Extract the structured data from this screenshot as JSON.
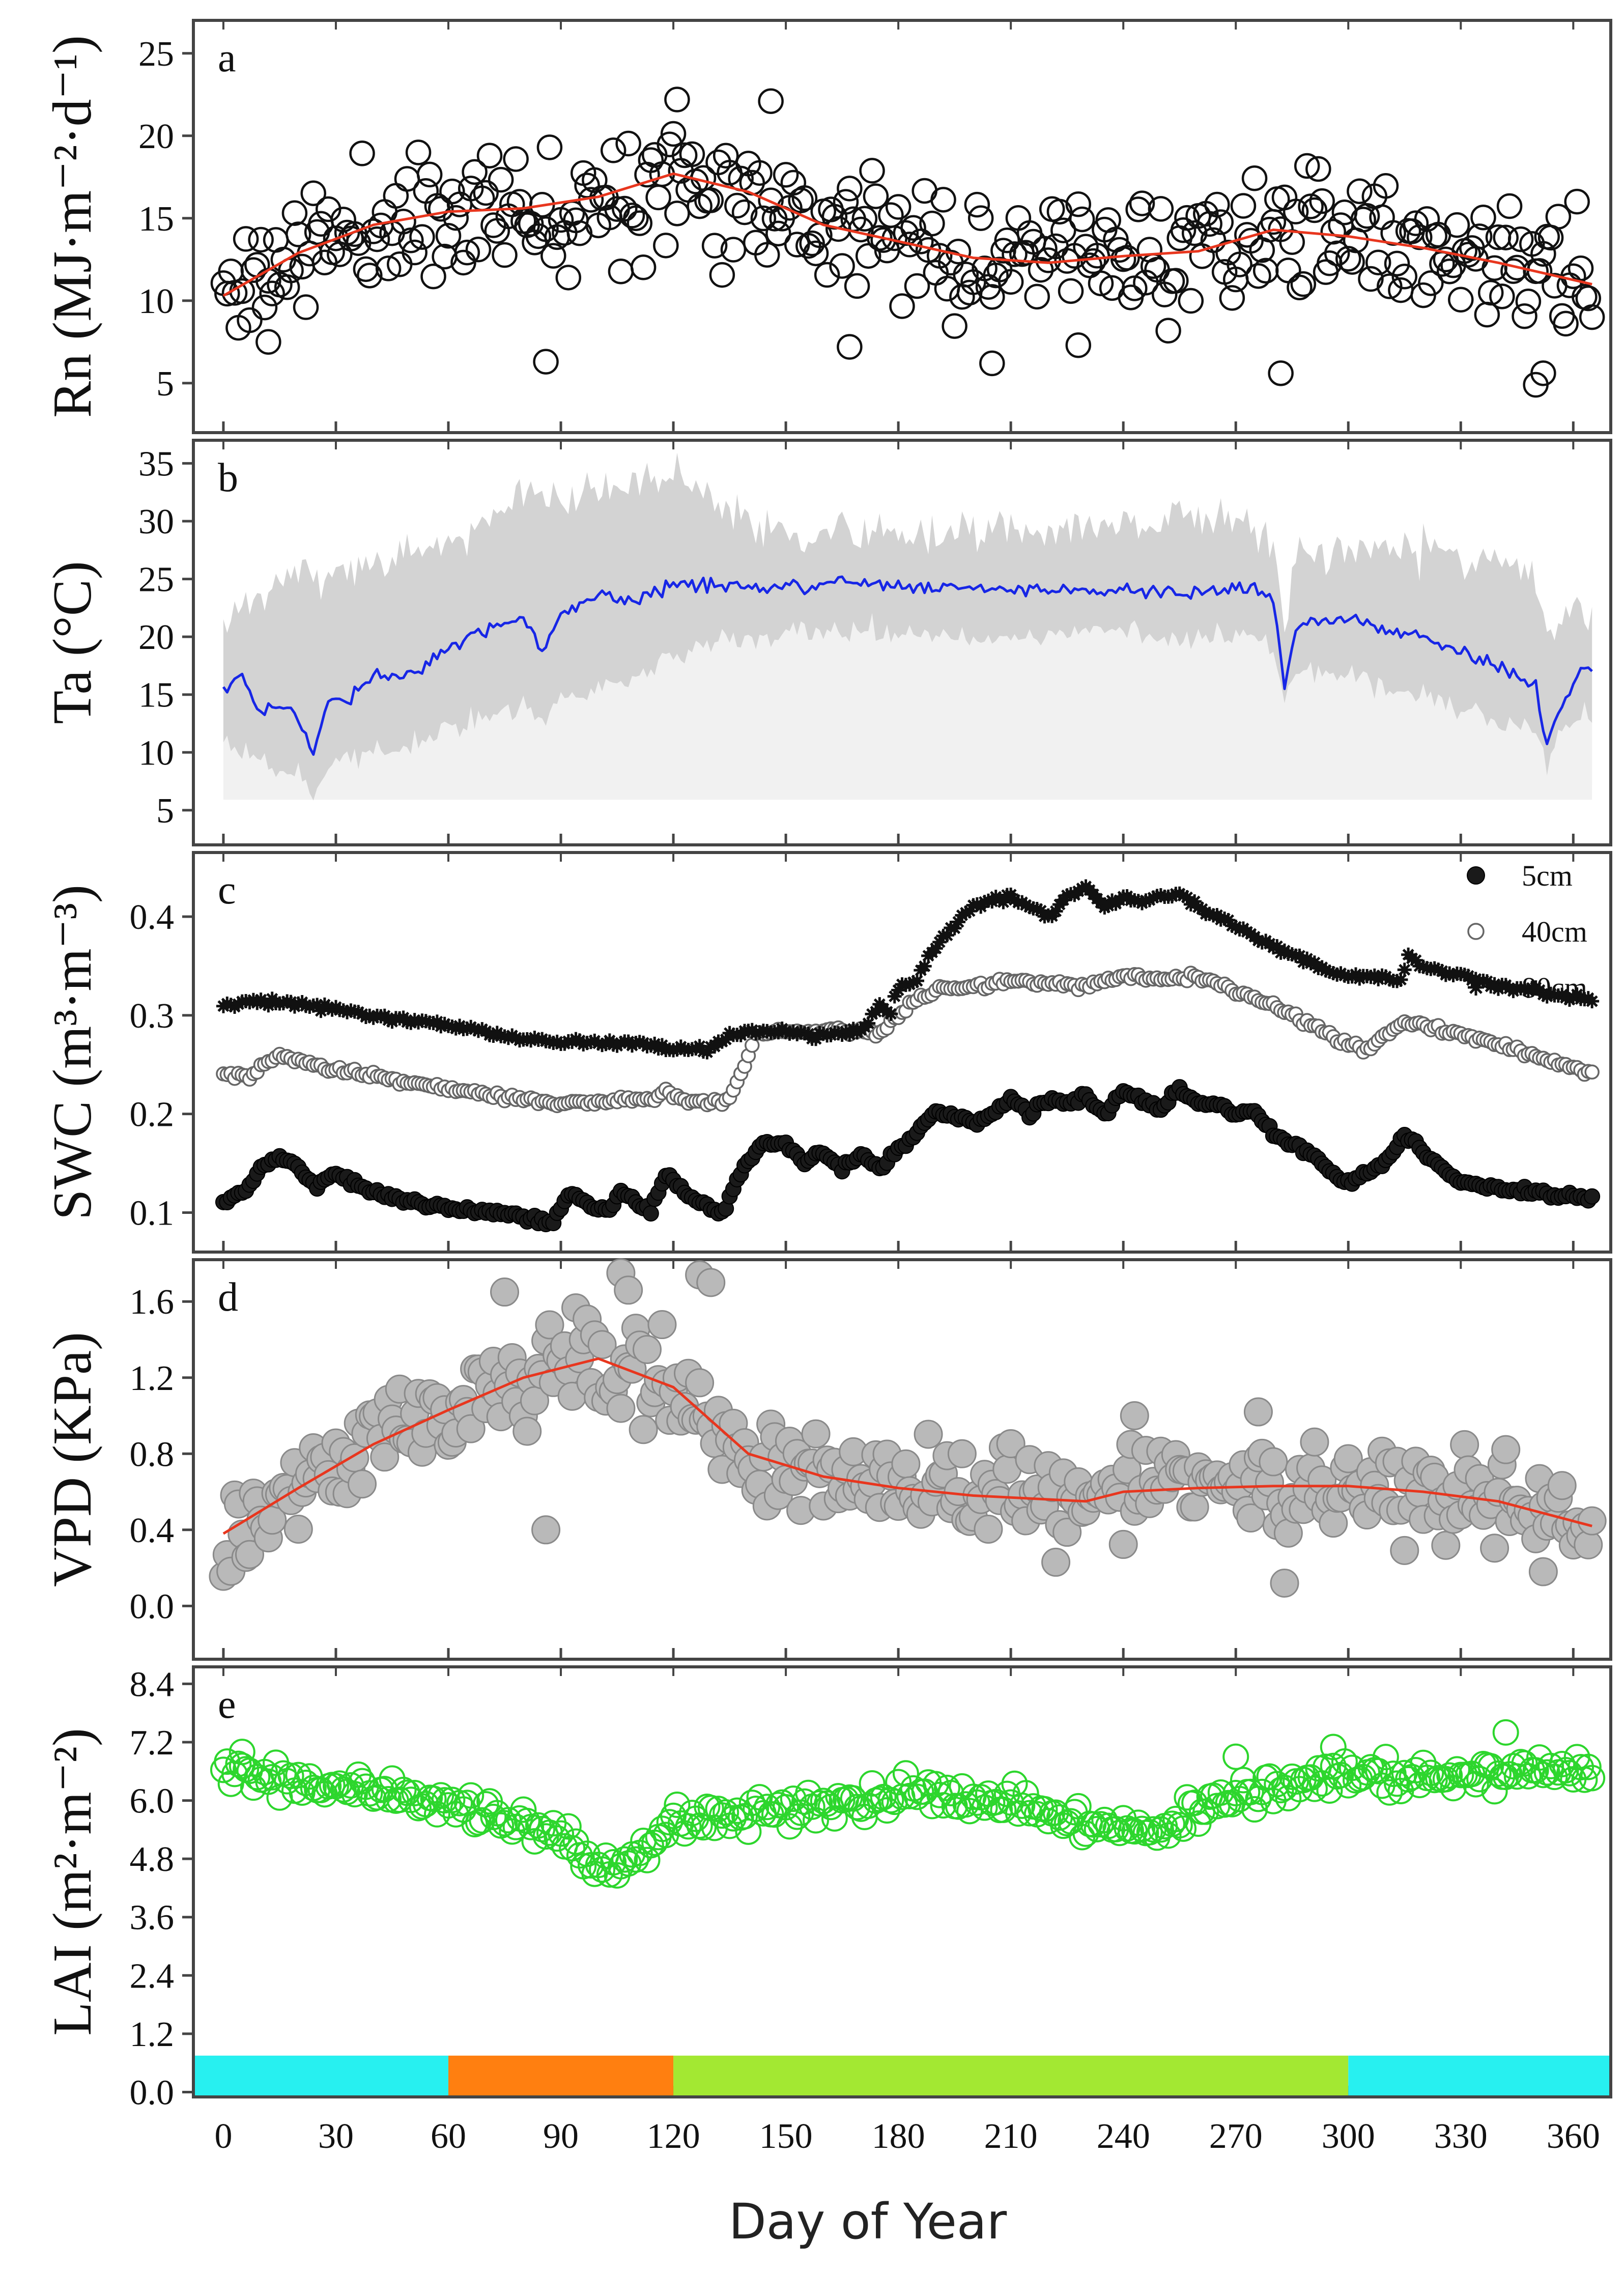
{
  "figure": {
    "x_title": "Day of Year",
    "x_ticks": [
      0,
      30,
      60,
      90,
      120,
      150,
      180,
      210,
      240,
      270,
      300,
      330,
      360
    ],
    "x_range": [
      -8,
      370
    ]
  },
  "colors": {
    "rn_marker": "#111111",
    "rn_trend": "#e8361e",
    "ta_band": "#d3d3d3",
    "ta_line": "#1726e6",
    "swc_series": "#1a1a1a",
    "vpd_marker": "#b9b9b9",
    "vpd_trend": "#e8361e",
    "lai_marker": "#2dd62d",
    "season_cyan": "#27f0f0",
    "season_orange": "#ff7f10",
    "season_green": "#a3e832"
  },
  "chart_data": [
    {
      "id": "a",
      "panel_label": "a",
      "type": "scatter",
      "ylabel": "Rn (MJ·m⁻²·d⁻¹)",
      "ylim": [
        2,
        27
      ],
      "y_ticks": [
        5,
        10,
        15,
        20,
        25
      ],
      "marker": "open-circle",
      "scatter_seed": 11,
      "scatter_noise": 2.6,
      "outliers": [
        [
          86,
          6.3
        ],
        [
          12,
          7.5
        ],
        [
          282,
          5.6
        ],
        [
          350,
          4.9
        ],
        [
          352,
          5.6
        ],
        [
          146,
          22.1
        ],
        [
          121,
          22.2
        ],
        [
          167,
          7.2
        ],
        [
          205,
          6.2
        ],
        [
          228,
          7.3
        ]
      ],
      "trend": {
        "x": [
          0,
          20,
          40,
          60,
          80,
          100,
          120,
          140,
          160,
          180,
          200,
          220,
          240,
          260,
          280,
          300,
          320,
          340,
          365
        ],
        "y": [
          10.3,
          12.9,
          14.6,
          15.4,
          15.6,
          16.3,
          17.7,
          16.6,
          14.6,
          13.6,
          12.6,
          12.3,
          12.7,
          13.0,
          14.3,
          13.9,
          13.2,
          12.3,
          11.0
        ]
      }
    },
    {
      "id": "b",
      "panel_label": "b",
      "type": "line",
      "ylabel": "Ta (°C)",
      "ylim": [
        2,
        37
      ],
      "y_ticks": [
        5,
        10,
        15,
        20,
        25,
        30,
        35
      ],
      "band_base": 5.9,
      "line": {
        "x": [
          0,
          5,
          10,
          15,
          20,
          24,
          28,
          34,
          40,
          50,
          60,
          70,
          80,
          85,
          90,
          100,
          110,
          120,
          130,
          140,
          160,
          180,
          200,
          220,
          240,
          260,
          275,
          280,
          283,
          286,
          290,
          300,
          320,
          340,
          350,
          353,
          357,
          362,
          365
        ],
        "y": [
          15.3,
          16.8,
          13.5,
          14.2,
          13.0,
          9.8,
          14.5,
          15.0,
          16.5,
          16.8,
          19.0,
          20.8,
          21.8,
          18.5,
          22.0,
          23.6,
          23.0,
          24.6,
          24.6,
          24.2,
          24.6,
          24.4,
          24.0,
          24.1,
          24.1,
          23.7,
          24.2,
          23.3,
          16.0,
          21.0,
          21.2,
          21.5,
          20.0,
          17.5,
          16.0,
          10.8,
          14.0,
          17.5,
          17.1
        ]
      },
      "upper": {
        "x": [
          0,
          10,
          20,
          30,
          40,
          50,
          60,
          70,
          80,
          85,
          90,
          100,
          110,
          120,
          130,
          140,
          150,
          160,
          180,
          200,
          220,
          240,
          260,
          275,
          280,
          283,
          286,
          290,
          300,
          320,
          340,
          350,
          355,
          360,
          365
        ],
        "y": [
          21.0,
          24.0,
          26.5,
          25.0,
          26.0,
          28.0,
          28.0,
          31.0,
          33.0,
          32.5,
          31.0,
          32.5,
          33.0,
          34.0,
          32.0,
          30.5,
          29.0,
          28.5,
          29.0,
          29.0,
          29.5,
          29.5,
          30.0,
          30.5,
          29.0,
          21.0,
          27.0,
          28.0,
          27.5,
          27.5,
          27.0,
          25.0,
          20.0,
          22.0,
          23.0
        ]
      },
      "lower": {
        "x": [
          0,
          10,
          20,
          24,
          28,
          40,
          50,
          60,
          70,
          80,
          85,
          90,
          100,
          110,
          120,
          130,
          140,
          160,
          180,
          200,
          220,
          240,
          260,
          275,
          280,
          283,
          286,
          290,
          300,
          320,
          340,
          350,
          353,
          357,
          365
        ],
        "y": [
          11.0,
          9.0,
          8.0,
          6.0,
          9.0,
          10.0,
          10.5,
          12.0,
          13.0,
          14.0,
          12.5,
          14.5,
          15.5,
          16.5,
          18.5,
          19.5,
          20.0,
          20.5,
          20.5,
          20.0,
          20.0,
          20.5,
          20.0,
          20.0,
          19.0,
          14.5,
          16.5,
          17.0,
          16.5,
          15.0,
          13.0,
          11.5,
          8.5,
          11.5,
          13.5
        ]
      }
    },
    {
      "id": "c",
      "panel_label": "c",
      "type": "scatter",
      "ylabel": "SWC (m³·m⁻³)",
      "ylim": [
        0.06,
        0.465
      ],
      "y_ticks": [
        0.1,
        0.2,
        0.3,
        0.4
      ],
      "y_tick_labels": [
        "0.1",
        "0.2",
        "0.3",
        "0.4"
      ],
      "legend": [
        {
          "label": "5cm",
          "marker": "filled-circle"
        },
        {
          "label": "40cm",
          "marker": "open-circle"
        },
        {
          "label": "80cm",
          "marker": "asterisk"
        }
      ],
      "series": [
        {
          "name": "5cm",
          "marker": "filled-circle",
          "x": [
            0,
            5,
            10,
            15,
            20,
            25,
            30,
            40,
            50,
            60,
            70,
            80,
            88,
            92,
            97,
            103,
            106,
            110,
            114,
            118,
            122,
            127,
            133,
            138,
            143,
            150,
            155,
            160,
            165,
            170,
            175,
            180,
            185,
            190,
            200,
            205,
            210,
            215,
            220,
            225,
            230,
            235,
            240,
            245,
            250,
            255,
            260,
            265,
            270,
            275,
            280,
            290,
            296,
            300,
            305,
            310,
            315,
            320,
            330,
            340,
            350,
            365
          ],
          "y": [
            0.11,
            0.12,
            0.145,
            0.158,
            0.145,
            0.125,
            0.14,
            0.12,
            0.11,
            0.105,
            0.1,
            0.095,
            0.09,
            0.12,
            0.11,
            0.1,
            0.122,
            0.11,
            0.1,
            0.14,
            0.125,
            0.11,
            0.1,
            0.14,
            0.17,
            0.17,
            0.15,
            0.16,
            0.145,
            0.16,
            0.145,
            0.165,
            0.18,
            0.205,
            0.19,
            0.2,
            0.218,
            0.2,
            0.215,
            0.21,
            0.22,
            0.2,
            0.225,
            0.215,
            0.205,
            0.225,
            0.21,
            0.21,
            0.2,
            0.205,
            0.18,
            0.16,
            0.14,
            0.13,
            0.14,
            0.15,
            0.18,
            0.16,
            0.13,
            0.125,
            0.12,
            0.115
          ]
        },
        {
          "name": "40cm",
          "marker": "open-circle",
          "x": [
            0,
            5,
            8,
            10,
            15,
            30,
            60,
            80,
            90,
            110,
            115,
            118,
            122,
            130,
            135,
            138,
            142,
            150,
            160,
            170,
            175,
            180,
            185,
            190,
            200,
            210,
            230,
            240,
            250,
            260,
            270,
            280,
            290,
            300,
            305,
            310,
            315,
            320,
            340,
            365
          ],
          "y": [
            0.24,
            0.24,
            0.238,
            0.25,
            0.258,
            0.245,
            0.225,
            0.215,
            0.21,
            0.215,
            0.213,
            0.225,
            0.215,
            0.213,
            0.213,
            0.24,
            0.28,
            0.283,
            0.285,
            0.285,
            0.28,
            0.3,
            0.315,
            0.325,
            0.33,
            0.335,
            0.33,
            0.34,
            0.335,
            0.34,
            0.325,
            0.31,
            0.29,
            0.27,
            0.265,
            0.28,
            0.295,
            0.29,
            0.27,
            0.24
          ]
        },
        {
          "name": "80cm",
          "marker": "asterisk",
          "x": [
            0,
            10,
            20,
            40,
            60,
            80,
            100,
            120,
            130,
            135,
            140,
            150,
            160,
            170,
            175,
            178,
            180,
            185,
            190,
            195,
            200,
            210,
            220,
            225,
            230,
            235,
            240,
            245,
            250,
            255,
            260,
            280,
            295,
            300,
            310,
            314,
            316,
            320,
            340,
            365
          ],
          "y": [
            0.312,
            0.313,
            0.312,
            0.3,
            0.29,
            0.275,
            0.272,
            0.268,
            0.265,
            0.28,
            0.285,
            0.282,
            0.28,
            0.285,
            0.31,
            0.3,
            0.33,
            0.335,
            0.37,
            0.39,
            0.41,
            0.42,
            0.4,
            0.42,
            0.43,
            0.41,
            0.42,
            0.415,
            0.42,
            0.425,
            0.41,
            0.37,
            0.345,
            0.34,
            0.34,
            0.335,
            0.36,
            0.35,
            0.33,
            0.315
          ]
        }
      ]
    },
    {
      "id": "d",
      "panel_label": "d",
      "type": "scatter",
      "ylabel": "VPD (KPa)",
      "ylim": [
        -0.28,
        1.82
      ],
      "y_ticks": [
        0.0,
        0.4,
        0.8,
        1.2,
        1.6
      ],
      "y_tick_labels": [
        "0.0",
        "0.4",
        "0.8",
        "1.2",
        "1.6"
      ],
      "marker": "filled-circle",
      "scatter_seed": 29,
      "scatter_noise": 0.17,
      "outliers": [
        [
          106,
          1.75
        ],
        [
          127,
          1.74
        ],
        [
          130,
          1.7
        ],
        [
          75,
          1.65
        ],
        [
          108,
          1.66
        ],
        [
          86,
          0.4
        ],
        [
          283,
          0.12
        ],
        [
          352,
          0.18
        ],
        [
          243,
          1.0
        ],
        [
          276,
          1.02
        ]
      ],
      "trend": {
        "x": [
          0,
          20,
          40,
          60,
          80,
          100,
          120,
          140,
          160,
          180,
          200,
          220,
          230,
          240,
          260,
          280,
          300,
          320,
          340,
          365
        ],
        "y": [
          0.38,
          0.62,
          0.85,
          1.03,
          1.2,
          1.3,
          1.15,
          0.8,
          0.68,
          0.62,
          0.58,
          0.56,
          0.55,
          0.6,
          0.62,
          0.63,
          0.63,
          0.6,
          0.55,
          0.42
        ]
      }
    },
    {
      "id": "e",
      "panel_label": "e",
      "type": "scatter",
      "ylabel": "LAI (m²·m⁻²)",
      "ylim": [
        -0.1,
        8.75
      ],
      "y_ticks": [
        0.0,
        1.2,
        2.4,
        3.6,
        4.8,
        6.0,
        7.2,
        8.4
      ],
      "y_tick_labels": [
        "0.0",
        "1.2",
        "2.4",
        "3.6",
        "4.8",
        "6.0",
        "7.2",
        "8.4"
      ],
      "marker": "open-circle",
      "scatter_seed": 47,
      "scatter_noise": 0.22,
      "outliers": [
        [
          5,
          7.0
        ],
        [
          342,
          7.4
        ],
        [
          270,
          6.9
        ],
        [
          296,
          7.1
        ]
      ],
      "trend": {
        "x": [
          0,
          20,
          40,
          60,
          80,
          90,
          100,
          105,
          110,
          120,
          130,
          150,
          170,
          180,
          200,
          220,
          240,
          250,
          260,
          280,
          300,
          320,
          340,
          365
        ],
        "y": [
          6.7,
          6.4,
          6.2,
          5.9,
          5.6,
          5.3,
          4.7,
          4.5,
          4.9,
          5.6,
          5.7,
          5.8,
          6.0,
          6.2,
          6.0,
          5.8,
          5.4,
          5.4,
          5.9,
          6.2,
          6.6,
          6.4,
          6.5,
          6.6
        ]
      },
      "season_bar": [
        {
          "start": -8,
          "end": 60,
          "color": "#27f0f0"
        },
        {
          "start": 60,
          "end": 120,
          "color": "#ff7f10"
        },
        {
          "start": 120,
          "end": 300,
          "color": "#a3e832"
        },
        {
          "start": 300,
          "end": 370,
          "color": "#27f0f0"
        }
      ]
    }
  ]
}
